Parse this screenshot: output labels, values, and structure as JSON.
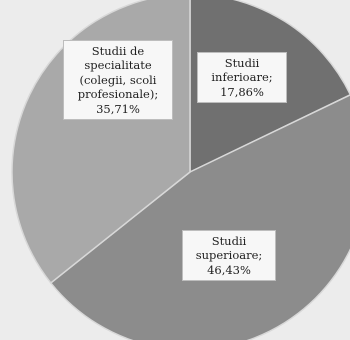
{
  "chart_data": {
    "type": "pie",
    "title": "",
    "slices": [
      {
        "id": "inferioare",
        "label_lines": [
          "Studii",
          "inferioare;",
          "17,86%"
        ],
        "value": 17.86,
        "color": "#707070"
      },
      {
        "id": "superioare",
        "label_lines": [
          "Studii",
          "superioare;",
          "46,43%"
        ],
        "value": 46.43,
        "color": "#8c8c8c"
      },
      {
        "id": "specialitate",
        "label_lines": [
          "Studii de",
          "specialitate",
          "(colegii, scoli",
          "profesionale);",
          "35,71%"
        ],
        "value": 35.71,
        "color": "#a9a9a9"
      }
    ],
    "start_angle_deg": 0,
    "direction": "clockwise",
    "legend": "none (labels inside slices)"
  }
}
